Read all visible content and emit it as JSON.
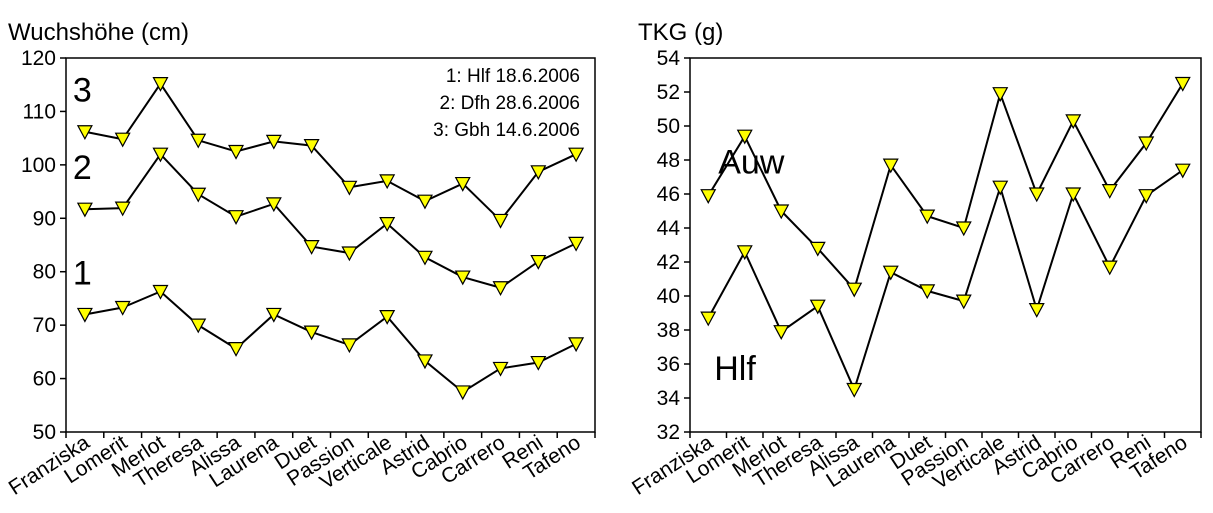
{
  "chart_data": [
    {
      "type": "line",
      "title": "Wuchshöhe (cm)",
      "categories": [
        "Franziska",
        "Lomerit",
        "Merlot",
        "Theresa",
        "Alissa",
        "Laurena",
        "Duet",
        "Passion",
        "Verticale",
        "Astrid",
        "Cabrio",
        "Carrero",
        "Reni",
        "Tafeno"
      ],
      "ylim": [
        50,
        120
      ],
      "yticks": [
        50,
        60,
        70,
        80,
        90,
        100,
        110,
        120
      ],
      "grid": false,
      "marker": "triangle-down",
      "marker_color": "#FFFF00",
      "line_color": "#000000",
      "series": [
        {
          "name": "1",
          "values": [
            72,
            73.3,
            76.3,
            70,
            65.6,
            72,
            68.7,
            66.3,
            71.6,
            63.3,
            57.5,
            61.9,
            63,
            66.5
          ]
        },
        {
          "name": "2",
          "values": [
            91.7,
            91.9,
            102,
            94.5,
            90.3,
            92.7,
            84.7,
            83.5,
            89,
            82.7,
            79,
            77,
            81.9,
            85.3
          ]
        },
        {
          "name": "3",
          "values": [
            106.2,
            104.8,
            115.2,
            104.6,
            102.5,
            104.4,
            103.6,
            95.8,
            97,
            93.2,
            96.5,
            89.6,
            98.7,
            102
          ]
        }
      ],
      "legend_lines": [
        "1: Hlf 18.6.2006",
        "2: Dfh 28.6.2006",
        "3: Gbh 14.6.2006"
      ]
    },
    {
      "type": "line",
      "title": "TKG (g)",
      "categories": [
        "Franziska",
        "Lomerit",
        "Merlot",
        "Theresa",
        "Alissa",
        "Laurena",
        "Duet",
        "Passion",
        "Verticale",
        "Astrid",
        "Cabrio",
        "Carrero",
        "Reni",
        "Tafeno"
      ],
      "ylim": [
        32,
        54
      ],
      "yticks": [
        32,
        34,
        36,
        38,
        40,
        42,
        44,
        46,
        48,
        50,
        52,
        54
      ],
      "grid": false,
      "marker": "triangle-down",
      "marker_color": "#FFFF00",
      "line_color": "#000000",
      "series": [
        {
          "name": "Auw",
          "values": [
            45.9,
            49.4,
            45,
            42.8,
            40.4,
            47.7,
            44.7,
            44,
            51.9,
            46,
            50.3,
            46.2,
            49,
            52.5
          ]
        },
        {
          "name": "Hlf",
          "values": [
            38.7,
            42.6,
            37.9,
            39.4,
            34.5,
            41.4,
            40.3,
            39.7,
            46.4,
            39.2,
            46,
            41.7,
            45.9,
            47.4
          ]
        }
      ]
    }
  ]
}
